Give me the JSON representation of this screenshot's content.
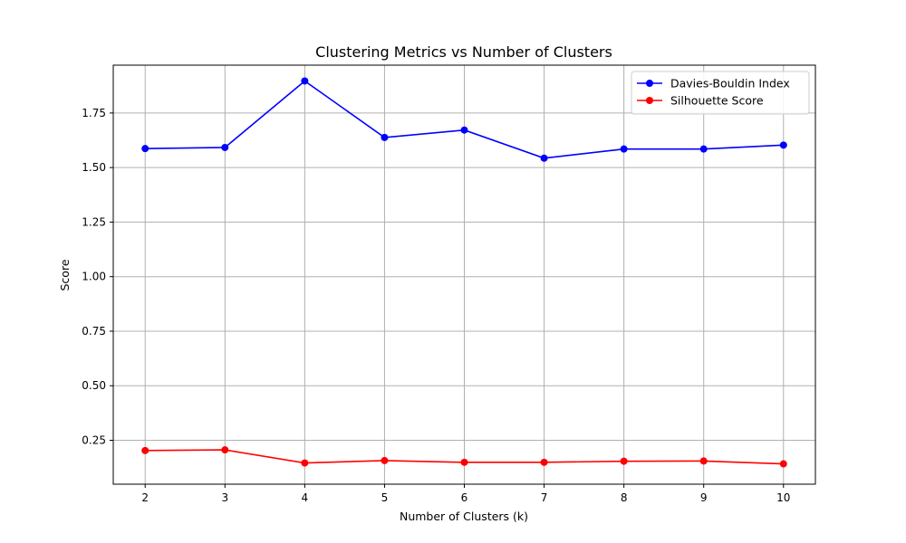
{
  "chart_data": {
    "type": "line",
    "title": "Clustering Metrics vs Number of Clusters",
    "xlabel": "Number of Clusters (k)",
    "ylabel": "Score",
    "x": [
      2,
      3,
      4,
      5,
      6,
      7,
      8,
      9,
      10
    ],
    "xlim": [
      1.6,
      10.4
    ],
    "ylim": [
      0.0488,
      1.9694
    ],
    "xticks": [
      2,
      3,
      4,
      5,
      6,
      7,
      8,
      9,
      10
    ],
    "yticks": [
      0.25,
      0.5,
      0.75,
      1.0,
      1.25,
      1.5,
      1.75
    ],
    "ytick_labels": [
      "0.25",
      "0.50",
      "0.75",
      "1.00",
      "1.25",
      "1.50",
      "1.75"
    ],
    "grid": true,
    "legend_position": "top-right",
    "series": [
      {
        "name": "Davies-Bouldin Index",
        "color": "#0000ff",
        "marker": "circle",
        "values": [
          1.587,
          1.592,
          1.897,
          1.638,
          1.672,
          1.543,
          1.585,
          1.585,
          1.603
        ]
      },
      {
        "name": "Silhouette Score",
        "color": "#ff0000",
        "marker": "circle",
        "values": [
          0.203,
          0.206,
          0.146,
          0.157,
          0.149,
          0.149,
          0.154,
          0.155,
          0.142
        ]
      }
    ]
  }
}
